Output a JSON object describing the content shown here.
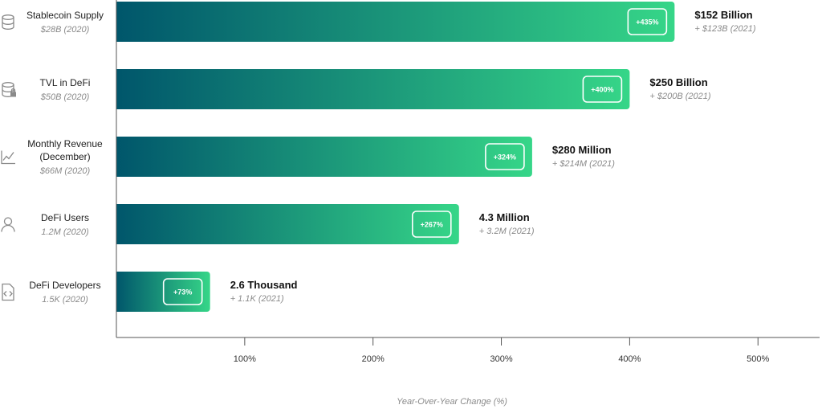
{
  "chart_data": {
    "type": "bar",
    "orientation": "horizontal",
    "categories": [
      {
        "label_lines": [
          "Stablecoin Supply"
        ],
        "baseline": "$28B (2020)",
        "value": 435,
        "badge": "+435%",
        "current": "$152 Billion",
        "added": "+ $123B (2021)",
        "icon": "database-icon"
      },
      {
        "label_lines": [
          "TVL in DeFi"
        ],
        "baseline": "$50B (2020)",
        "value": 400,
        "badge": "+400%",
        "current": "$250 Billion",
        "added": "+ $200B (2021)",
        "icon": "database-lock-icon"
      },
      {
        "label_lines": [
          "Monthly Revenue",
          "(December)"
        ],
        "baseline": "$66M (2020)",
        "value": 324,
        "badge": "+324%",
        "current": "$280 Million",
        "added": "+ $214M (2021)",
        "icon": "line-chart-icon"
      },
      {
        "label_lines": [
          "DeFi Users"
        ],
        "baseline": "1.2M (2020)",
        "value": 267,
        "badge": "+267%",
        "current": "4.3 Million",
        "added": "+ 3.2M (2021)",
        "icon": "user-icon"
      },
      {
        "label_lines": [
          "DeFi Developers"
        ],
        "baseline": "1.5K (2020)",
        "value": 73,
        "badge": "+73%",
        "current": "2.6 Thousand",
        "added": "+ 1.1K (2021)",
        "icon": "code-file-icon"
      }
    ],
    "xticks": [
      {
        "value": 100,
        "label": "100%"
      },
      {
        "value": 200,
        "label": "200%"
      },
      {
        "value": 300,
        "label": "300%"
      },
      {
        "value": 400,
        "label": "400%"
      },
      {
        "value": 500,
        "label": "500%"
      }
    ],
    "xlim": [
      0,
      525
    ],
    "xlabel": "Year-Over-Year Change (%)",
    "colors": {
      "bar_start": "#00566b",
      "bar_end": "#36d688",
      "axis": "#888888",
      "icon": "#8a8a8a"
    }
  }
}
